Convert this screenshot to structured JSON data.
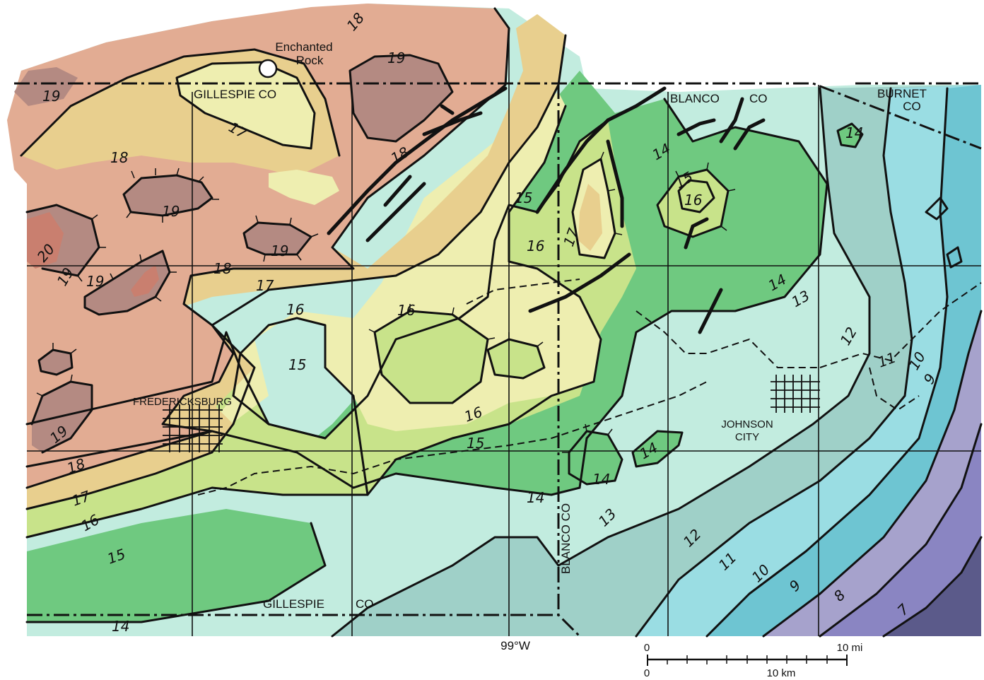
{
  "map": {
    "place_labels": {
      "enchanted_rock": [
        "Enchanted",
        "Rock"
      ],
      "gillespie_top": "GILLESPIE CO",
      "blanco_top_a": "BLANCO",
      "blanco_top_b": "CO",
      "burnet": [
        "BURNET",
        "CO"
      ],
      "fredericksburg": "FREDERICKSBURG",
      "johnson_city": [
        "JOHNSON",
        "CITY"
      ],
      "blanco_vertical": "BLANCO CO",
      "gillespie_bottom_a": "GILLESPIE",
      "gillespie_bottom_b": "CO"
    },
    "longitude_label": "99°W",
    "contour_labels": [
      "20",
      "19",
      "19",
      "19",
      "19",
      "19",
      "19",
      "19",
      "18",
      "18",
      "18",
      "18",
      "18",
      "17",
      "17",
      "17",
      "17",
      "16",
      "16",
      "16",
      "16",
      "16",
      "16",
      "15",
      "15",
      "15",
      "15",
      "15",
      "14",
      "14",
      "14",
      "14",
      "14",
      "14",
      "14",
      "13",
      "13",
      "12",
      "12",
      "11",
      "11",
      "10",
      "10",
      "9",
      "9",
      "8",
      "7"
    ],
    "scale_bar": {
      "miles_start": "0",
      "miles_end": "10 mi",
      "km_start": "0",
      "km_end": "10 km"
    },
    "colors": {
      "c20": "#c97f6f",
      "c19": "#b48a82",
      "c18": "#e2ac93",
      "c17": "#e8cf8e",
      "c16": "#eeeeb0",
      "c15": "#c8e38a",
      "c14": "#6fc980",
      "c13": "#c2ecdf",
      "c12": "#9fd0c8",
      "c11": "#9adde3",
      "c10": "#6ec5d2",
      "c9": "#a6a2cc",
      "c8": "#8a85c2",
      "c7": "#5b5a8a"
    }
  }
}
